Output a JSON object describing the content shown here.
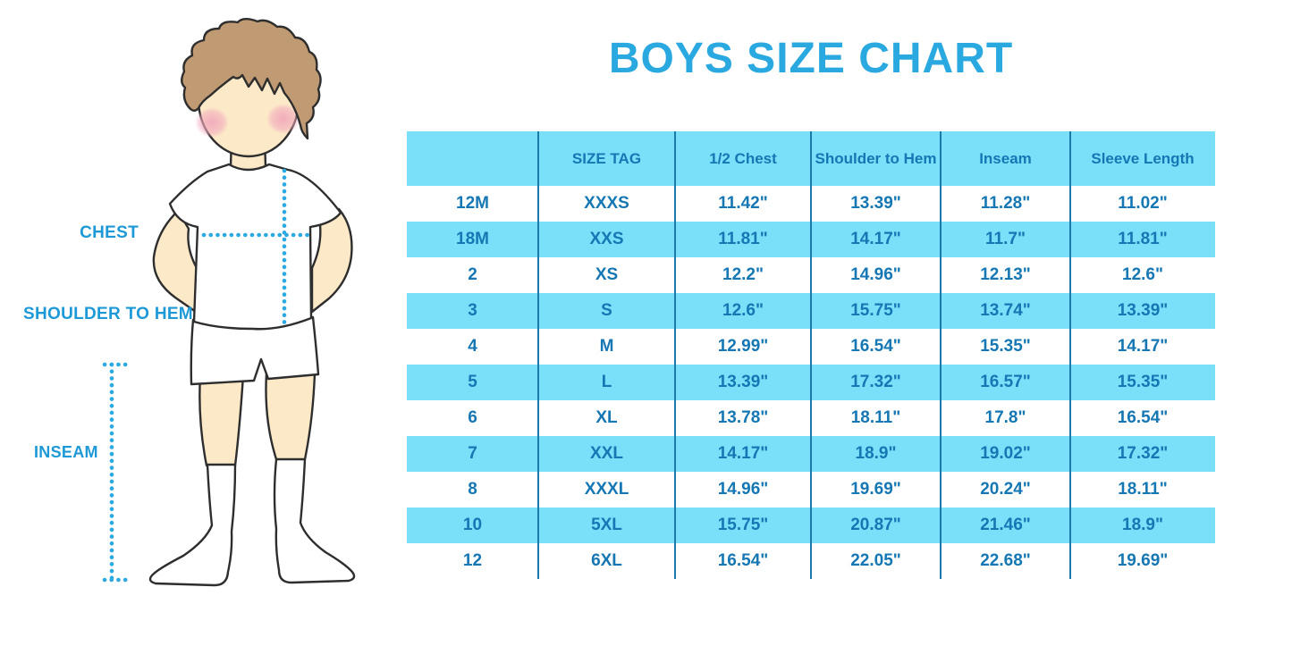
{
  "title": "BOYS SIZE CHART",
  "figure": {
    "labels": {
      "chest": "CHEST",
      "shoulder_to_hem": "SHOULDER TO HEM",
      "inseam": "INSEAM"
    }
  },
  "chart_data": {
    "type": "table",
    "title": "BOYS SIZE CHART",
    "columns": [
      "",
      "SIZE TAG",
      "1/2 Chest",
      "Shoulder to Hem",
      "Inseam",
      "Sleeve Length"
    ],
    "rows": [
      [
        "12M",
        "XXXS",
        "11.42\"",
        "13.39\"",
        "11.28\"",
        "11.02\""
      ],
      [
        "18M",
        "XXS",
        "11.81\"",
        "14.17\"",
        "11.7\"",
        "11.81\""
      ],
      [
        "2",
        "XS",
        "12.2\"",
        "14.96\"",
        "12.13\"",
        "12.6\""
      ],
      [
        "3",
        "S",
        "12.6\"",
        "15.75\"",
        "13.74\"",
        "13.39\""
      ],
      [
        "4",
        "M",
        "12.99\"",
        "16.54\"",
        "15.35\"",
        "14.17\""
      ],
      [
        "5",
        "L",
        "13.39\"",
        "17.32\"",
        "16.57\"",
        "15.35\""
      ],
      [
        "6",
        "XL",
        "13.78\"",
        "18.11\"",
        "17.8\"",
        "16.54\""
      ],
      [
        "7",
        "XXL",
        "14.17\"",
        "18.9\"",
        "19.02\"",
        "17.32\""
      ],
      [
        "8",
        "XXXL",
        "14.96\"",
        "19.69\"",
        "20.24\"",
        "18.11\""
      ],
      [
        "10",
        "5XL",
        "15.75\"",
        "20.87\"",
        "21.46\"",
        "18.9\""
      ],
      [
        "12",
        "6XL",
        "16.54\"",
        "22.05\"",
        "22.68\"",
        "19.69\""
      ]
    ],
    "layout": {
      "striped": true,
      "first_data_row_background": "white",
      "stripe_color": "#7ADFF9",
      "divider_color": "#1B7AA9",
      "text_color": "#1577B3",
      "title_color": "#2AA9E1",
      "measure_line_color": "#2BAAE2"
    }
  }
}
